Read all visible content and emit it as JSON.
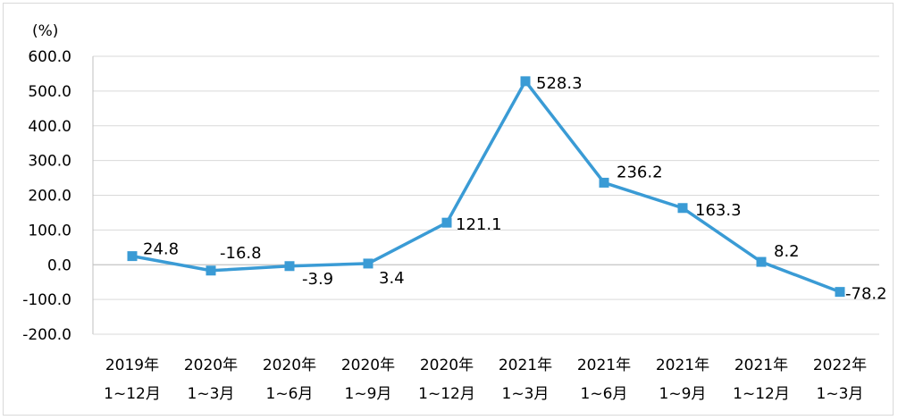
{
  "chart_data": {
    "type": "line",
    "title": "",
    "xlabel": "",
    "ylabel": "(%)",
    "ylim": [
      -200,
      600
    ],
    "yticks": [
      600,
      500,
      400,
      300,
      200,
      100,
      0,
      -100,
      -200
    ],
    "ytick_labels": [
      "600.0",
      "500.0",
      "400.0",
      "300.0",
      "200.0",
      "100.0",
      "0.0",
      "-100.0",
      "-200.0"
    ],
    "grid": true,
    "line_color": "#3a9bd5",
    "categories": [
      [
        "2019年",
        "1~12月"
      ],
      [
        "2020年",
        "1~3月"
      ],
      [
        "2020年",
        "1~6月"
      ],
      [
        "2020年",
        "1~9月"
      ],
      [
        "2020年",
        "1~12月"
      ],
      [
        "2021年",
        "1~3月"
      ],
      [
        "2021年",
        "1~6月"
      ],
      [
        "2021年",
        "1~9月"
      ],
      [
        "2021年",
        "1~12月"
      ],
      [
        "2022年",
        "1~3月"
      ]
    ],
    "values": [
      24.8,
      -16.8,
      -3.9,
      3.4,
      121.1,
      528.3,
      236.2,
      163.3,
      8.2,
      -78.2
    ],
    "data_labels": [
      "24.8",
      "-16.8",
      "-3.9",
      "3.4",
      "121.1",
      "528.3",
      "236.2",
      "163.3",
      "8.2",
      "-78.2"
    ]
  }
}
